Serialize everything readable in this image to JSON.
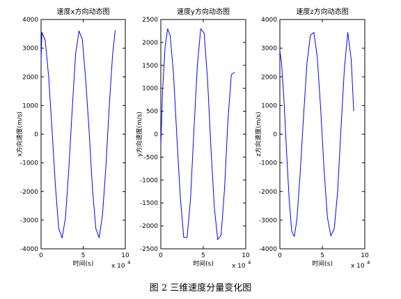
{
  "caption": "图 2  三维速度分量变化图",
  "chart_data": [
    {
      "type": "line",
      "title": "速度x方向动态图",
      "xlabel": "时间(s)",
      "ylabel": "x方向速度(m/s)",
      "xlim": [
        0,
        100000
      ],
      "ylim": [
        -4000,
        4000
      ],
      "xticks": [
        0,
        50000,
        100000
      ],
      "xtick_labels": [
        "0",
        "5",
        "10"
      ],
      "x_multiplier": "x 10",
      "x_multiplier_exp": "4",
      "yticks": [
        -4000,
        -3000,
        -2000,
        -1000,
        0,
        1000,
        2000,
        3000,
        4000
      ],
      "ytick_labels": [
        "-4000",
        "-3000",
        "-2000",
        "-1000",
        "0",
        "1000",
        "2000",
        "3000",
        "4000"
      ],
      "series": [
        {
          "color": "#0000ff",
          "x": [
            0,
            1000,
            5000,
            9000,
            13000,
            17000,
            21000,
            25000,
            29000,
            33000,
            37000,
            41000,
            45000,
            49000,
            53000,
            57000,
            61000,
            65000,
            69000,
            73000,
            77000,
            81000,
            85000,
            88000
          ],
          "values": [
            2600,
            3550,
            3270,
            2000,
            170,
            -1800,
            -3300,
            -3620,
            -2900,
            -1200,
            900,
            2800,
            3600,
            3300,
            1900,
            100,
            -1900,
            -3300,
            -3610,
            -2800,
            -1100,
            1000,
            2800,
            3630
          ]
        }
      ]
    },
    {
      "type": "line",
      "title": "速度y方向动态图",
      "xlabel": "时间(s)",
      "ylabel": "y方向速度(m/s)",
      "xlim": [
        0,
        100000
      ],
      "ylim": [
        -2500,
        2500
      ],
      "xticks": [
        0,
        50000,
        100000
      ],
      "xtick_labels": [
        "0",
        "5",
        "10"
      ],
      "x_multiplier": "x 10",
      "x_multiplier_exp": "4",
      "yticks": [
        -2500,
        -2000,
        -1500,
        -1000,
        -500,
        0,
        500,
        1000,
        1500,
        2000,
        2500
      ],
      "ytick_labels": [
        "-2500",
        "-2000",
        "-1500",
        "-1000",
        "-500",
        "0",
        "500",
        "1000",
        "1500",
        "2000",
        "2500"
      ],
      "series": [
        {
          "color": "#0000ff",
          "x": [
            0,
            2000,
            5000,
            8000,
            11000,
            15000,
            19000,
            23000,
            27000,
            31000,
            35000,
            39000,
            43000,
            47000,
            51000,
            55000,
            59000,
            63000,
            67000,
            71000,
            75000,
            79000,
            83000,
            87000
          ],
          "values": [
            -250,
            900,
            1900,
            2300,
            2150,
            1300,
            -100,
            -1400,
            -2250,
            -2250,
            -1400,
            100,
            1500,
            2300,
            2200,
            1200,
            -300,
            -1600,
            -2300,
            -2200,
            -1200,
            300,
            1300,
            1350
          ]
        }
      ]
    },
    {
      "type": "line",
      "title": "速度z方向动态图",
      "xlabel": "时间(s)",
      "ylabel": "z方向速度(m/s)",
      "xlim": [
        0,
        100000
      ],
      "ylim": [
        -4000,
        4000
      ],
      "xticks": [
        0,
        50000,
        100000
      ],
      "xtick_labels": [
        "0",
        "5",
        "10"
      ],
      "x_multiplier": "x 10",
      "x_multiplier_exp": "4",
      "yticks": [
        -4000,
        -3000,
        -2000,
        -1000,
        0,
        1000,
        2000,
        3000,
        4000
      ],
      "ytick_labels": [
        "-4000",
        "-3000",
        "-2000",
        "-1000",
        "0",
        "1000",
        "2000",
        "3000",
        "4000"
      ],
      "series": [
        {
          "color": "#0000ff",
          "x": [
            0,
            2000,
            5000,
            8000,
            11000,
            14000,
            17000,
            20000,
            24000,
            28000,
            32000,
            36000,
            40000,
            44000,
            48000,
            52000,
            56000,
            60000,
            64000,
            68000,
            72000,
            76000,
            80000,
            84000,
            87000
          ],
          "values": [
            2900,
            2500,
            1100,
            -700,
            -2300,
            -3400,
            -3570,
            -3000,
            -1300,
            700,
            2500,
            3450,
            3550,
            2700,
            900,
            -1200,
            -2900,
            -3550,
            -3300,
            -2000,
            200,
            2300,
            3550,
            2600,
            800
          ]
        }
      ]
    }
  ]
}
